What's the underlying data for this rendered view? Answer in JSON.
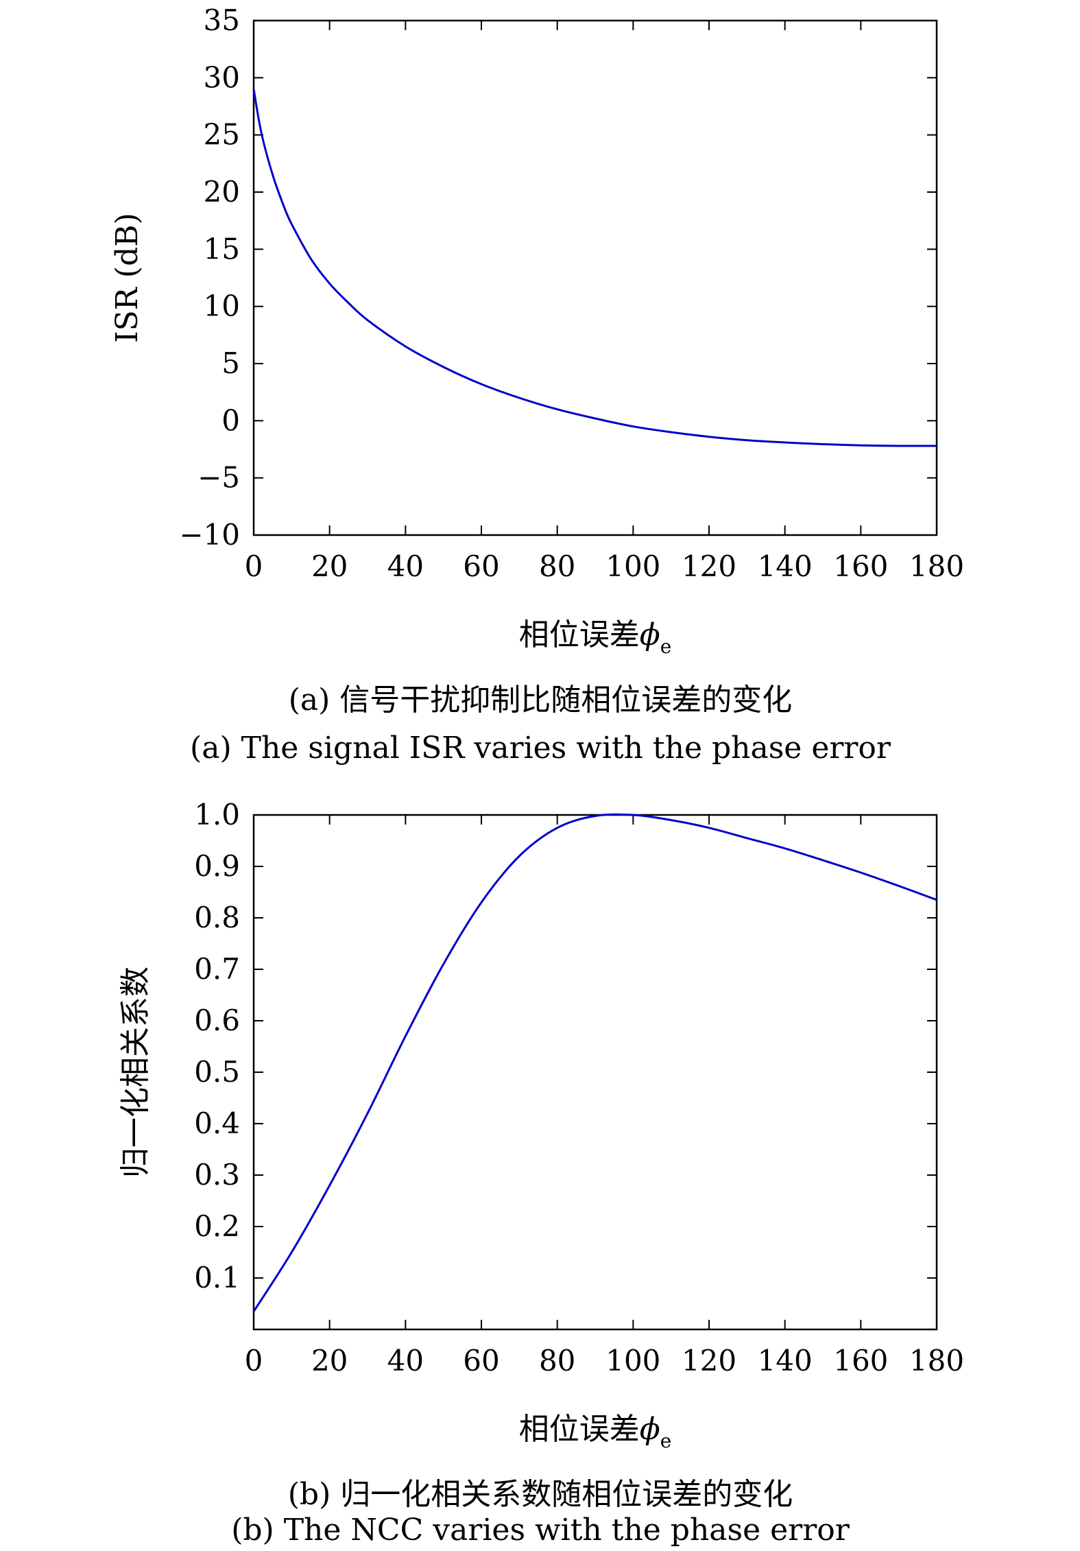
{
  "chart_data": [
    {
      "type": "line",
      "xlabel": "相位误差",
      "xlabel_symbol": "ϕ",
      "xlabel_subscript": "e",
      "ylabel": "ISR (dB)",
      "xlim": [
        0,
        180
      ],
      "ylim": [
        -10,
        35
      ],
      "x_ticks": [
        "0",
        "20",
        "40",
        "60",
        "80",
        "100",
        "120",
        "140",
        "160",
        "180"
      ],
      "y_ticks": [
        "−10",
        "−5",
        "0",
        "5",
        "10",
        "15",
        "20",
        "25",
        "30",
        "35"
      ],
      "series": [
        {
          "color": "#0000cc",
          "x": [
            0,
            2,
            5,
            8,
            10,
            15,
            20,
            25,
            30,
            40,
            50,
            60,
            70,
            80,
            90,
            100,
            110,
            120,
            130,
            140,
            150,
            160,
            170,
            180
          ],
          "y": [
            29,
            25.2,
            21.5,
            18.7,
            17.2,
            14.2,
            12.0,
            10.3,
            8.8,
            6.5,
            4.7,
            3.2,
            2.0,
            1.0,
            0.2,
            -0.5,
            -1.0,
            -1.4,
            -1.7,
            -1.9,
            -2.05,
            -2.15,
            -2.2,
            -2.2
          ]
        }
      ],
      "caption_cn": "(a) 信号干扰抑制比随相位误差的变化",
      "caption_en": "(a) The signal ISR varies with the phase error"
    },
    {
      "type": "line",
      "xlabel": "相位误差",
      "xlabel_symbol": "ϕ",
      "xlabel_subscript": "e",
      "ylabel": "归一化相关系数",
      "xlim": [
        0,
        180
      ],
      "ylim": [
        0,
        1.0
      ],
      "x_ticks": [
        "0",
        "20",
        "40",
        "60",
        "80",
        "100",
        "120",
        "140",
        "160",
        "180"
      ],
      "y_ticks": [
        "0.1",
        "0.2",
        "0.3",
        "0.4",
        "0.5",
        "0.6",
        "0.7",
        "0.8",
        "0.9",
        "1.0"
      ],
      "series": [
        {
          "color": "#0000cc",
          "x": [
            0,
            10,
            20,
            30,
            40,
            50,
            60,
            70,
            80,
            90,
            100,
            110,
            120,
            130,
            140,
            150,
            160,
            170,
            180
          ],
          "y": [
            0.035,
            0.15,
            0.28,
            0.42,
            0.57,
            0.71,
            0.83,
            0.92,
            0.975,
            0.998,
            1.0,
            0.99,
            0.975,
            0.955,
            0.935,
            0.912,
            0.888,
            0.862,
            0.835
          ]
        }
      ],
      "caption_cn": "(b) 归一化相关系数随相位误差的变化",
      "caption_en": "(b) The NCC varies with the phase error"
    }
  ]
}
